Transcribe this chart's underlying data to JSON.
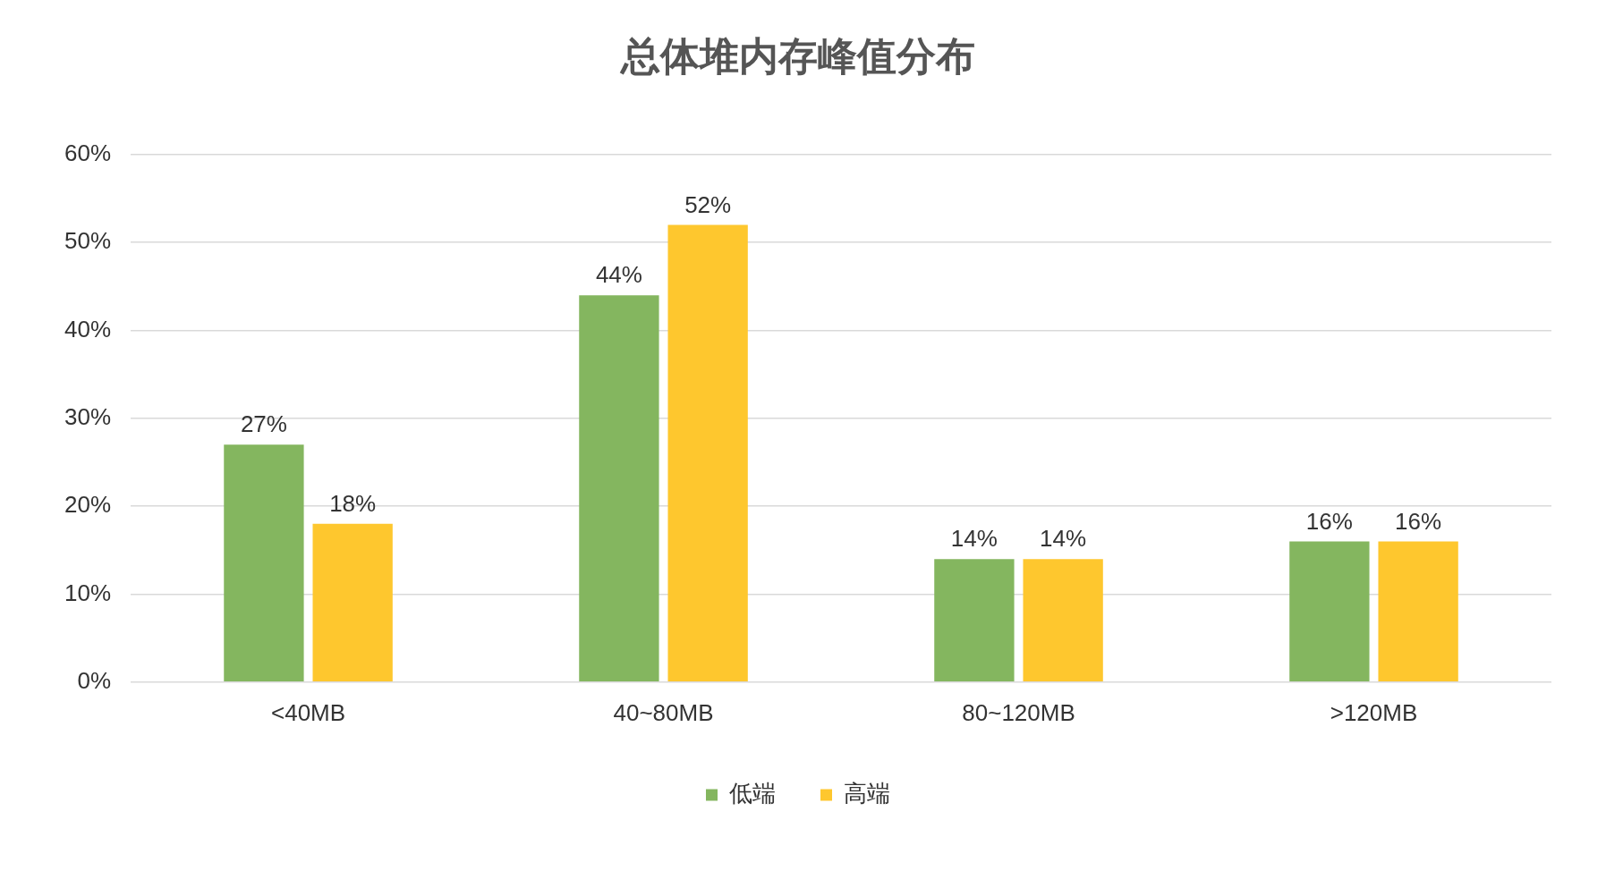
{
  "chart_data": {
    "type": "bar",
    "title": "总体堆内存峰值分布",
    "categories": [
      "<40MB",
      "40~80MB",
      "80~120MB",
      ">120MB"
    ],
    "series": [
      {
        "name": "低端",
        "color": "#84b65f",
        "values": [
          27,
          44,
          14,
          16
        ],
        "value_labels": [
          "27%",
          "44%",
          "14%",
          "16%"
        ]
      },
      {
        "name": "高端",
        "color": "#fec72e",
        "values": [
          18,
          52,
          14,
          16
        ],
        "value_labels": [
          "18%",
          "52%",
          "14%",
          "16%"
        ]
      }
    ],
    "ylim": [
      0,
      60
    ],
    "yticks": [
      {
        "value": 0,
        "label": "0%"
      },
      {
        "value": 10,
        "label": "10%"
      },
      {
        "value": 20,
        "label": "20%"
      },
      {
        "value": 30,
        "label": "30%"
      },
      {
        "value": 40,
        "label": "40%"
      },
      {
        "value": 50,
        "label": "50%"
      },
      {
        "value": 60,
        "label": "60%"
      }
    ],
    "grid": "y",
    "legend": "bottom"
  }
}
